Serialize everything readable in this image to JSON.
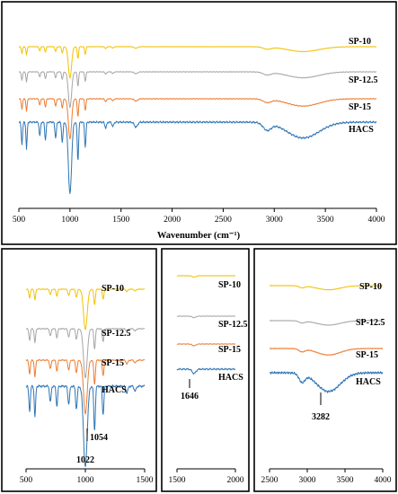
{
  "colors": {
    "SP-10": "#f2c200",
    "SP-12.5": "#a6a6a6",
    "SP-15": "#ed7d31",
    "HACS": "#2e75b6"
  },
  "chart_data": [
    {
      "id": "top",
      "type": "line",
      "xlabel": "Wavenumber (cm⁻¹)",
      "xlim": [
        500,
        4000
      ],
      "xticks": [
        "500",
        "1000",
        "1500",
        "2000",
        "2500",
        "3000",
        "3500",
        "4000"
      ],
      "series": [
        {
          "name": "SP-10"
        },
        {
          "name": "SP-12.5"
        },
        {
          "name": "SP-15"
        },
        {
          "name": "HACS"
        }
      ],
      "annotations": []
    },
    {
      "id": "bottom-left",
      "type": "line",
      "xlabel": "",
      "xlim": [
        500,
        1500
      ],
      "xticks": [
        "500",
        "1000",
        "1500"
      ],
      "series": [
        {
          "name": "SP-10"
        },
        {
          "name": "SP-12.5"
        },
        {
          "name": "SP-15"
        },
        {
          "name": "HACS"
        }
      ],
      "annotations": [
        {
          "x": 1054,
          "text": "1054"
        },
        {
          "x": 1022,
          "text": "1022"
        }
      ]
    },
    {
      "id": "bottom-mid",
      "type": "line",
      "xlabel": "",
      "xlim": [
        1500,
        2000
      ],
      "xticks": [
        "1500",
        "2000"
      ],
      "series": [
        {
          "name": "SP-10"
        },
        {
          "name": "SP-12.5"
        },
        {
          "name": "SP-15"
        },
        {
          "name": "HACS"
        }
      ],
      "annotations": [
        {
          "x": 1646,
          "text": "1646"
        }
      ]
    },
    {
      "id": "bottom-right",
      "type": "line",
      "xlabel": "",
      "xlim": [
        2500,
        4000
      ],
      "xticks": [
        "2500",
        "3000",
        "3500",
        "4000"
      ],
      "series": [
        {
          "name": "SP-10"
        },
        {
          "name": "SP-12.5"
        },
        {
          "name": "SP-15"
        },
        {
          "name": "HACS"
        }
      ],
      "annotations": [
        {
          "x": 3282,
          "text": "3282"
        }
      ]
    }
  ]
}
